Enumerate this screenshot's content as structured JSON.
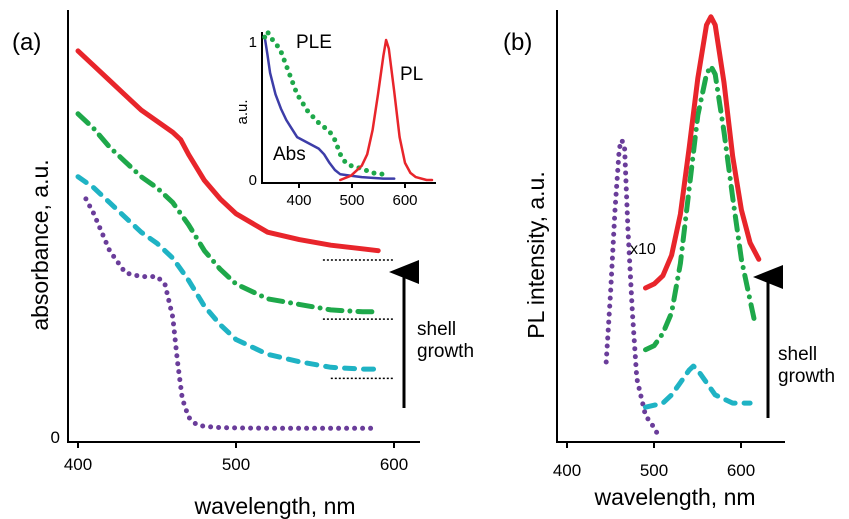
{
  "colors": {
    "red": "#e8252b",
    "green": "#1ea84a",
    "cyan": "#1fb3c4",
    "purple": "#6a3d9a",
    "blue": "#3d3da8",
    "axis": "#000000"
  },
  "chart_data": [
    {
      "type": "line",
      "panel": "(a)",
      "xlabel": "wavelength, nm",
      "ylabel": "absorbance, a.u.",
      "xlim": [
        400,
        600
      ],
      "x_ticks": [
        "400",
        "500",
        "600"
      ],
      "y_tick_label": "0",
      "ylim": [
        0,
        1
      ],
      "arrow_annotation": "shell growth",
      "series": [
        {
          "style": "dotted",
          "color": "purple",
          "x": [
            405,
            410,
            420,
            430,
            440,
            450,
            455,
            460,
            463,
            466,
            470,
            475,
            480,
            490,
            500,
            520,
            540,
            560,
            580,
            590
          ],
          "y": [
            0.63,
            0.59,
            0.49,
            0.43,
            0.42,
            0.42,
            0.4,
            0.31,
            0.19,
            0.09,
            0.04,
            0.02,
            0.015,
            0.012,
            0.011,
            0.01,
            0.01,
            0.01,
            0.01,
            0.01
          ]
        },
        {
          "style": "dashed",
          "color": "cyan",
          "x": [
            400,
            410,
            420,
            430,
            440,
            450,
            460,
            470,
            480,
            490,
            500,
            520,
            540,
            560,
            580,
            590
          ],
          "y": [
            0.69,
            0.66,
            0.62,
            0.58,
            0.54,
            0.51,
            0.47,
            0.41,
            0.34,
            0.29,
            0.25,
            0.21,
            0.19,
            0.175,
            0.17,
            0.17
          ]
        },
        {
          "style": "dashdot",
          "color": "green",
          "x": [
            400,
            410,
            420,
            430,
            440,
            450,
            460,
            470,
            480,
            490,
            500,
            520,
            540,
            560,
            580,
            590
          ],
          "y": [
            0.86,
            0.82,
            0.77,
            0.73,
            0.69,
            0.66,
            0.62,
            0.56,
            0.49,
            0.44,
            0.4,
            0.36,
            0.345,
            0.33,
            0.325,
            0.325
          ]
        },
        {
          "style": "solid",
          "color": "red",
          "x": [
            400,
            410,
            420,
            430,
            440,
            450,
            460,
            465,
            470,
            480,
            490,
            500,
            520,
            540,
            560,
            580,
            590
          ],
          "y": [
            1.03,
            0.99,
            0.95,
            0.91,
            0.87,
            0.84,
            0.81,
            0.79,
            0.75,
            0.68,
            0.63,
            0.59,
            0.54,
            0.52,
            0.505,
            0.495,
            0.49
          ]
        }
      ],
      "baselines": [
        {
          "x": [
            555,
            600
          ],
          "y": 0.465
        },
        {
          "x": [
            555,
            600
          ],
          "y": 0.305
        },
        {
          "x": [
            560,
            600
          ],
          "y": 0.145
        }
      ]
    },
    {
      "type": "line",
      "panel": "inset",
      "x_ticks": [
        "400",
        "500",
        "600"
      ],
      "y_ticks": [
        "0",
        "1"
      ],
      "xlim": [
        335,
        650
      ],
      "ylim": [
        0,
        1.05
      ],
      "ylabel": "a.u.",
      "series_labels": [
        "PLE",
        "Abs",
        "PL"
      ],
      "series": [
        {
          "name": "Abs",
          "style": "solid",
          "color": "blue",
          "x": [
            340,
            345,
            350,
            360,
            370,
            380,
            390,
            400,
            420,
            440,
            450,
            460,
            470,
            480,
            500,
            520,
            540,
            560,
            580
          ],
          "y": [
            1.0,
            0.88,
            0.75,
            0.6,
            0.5,
            0.42,
            0.36,
            0.3,
            0.26,
            0.22,
            0.18,
            0.12,
            0.07,
            0.04,
            0.03,
            0.02,
            0.015,
            0.01,
            0.01
          ]
        },
        {
          "name": "PLE",
          "style": "dotted",
          "color": "green",
          "x": [
            340,
            345,
            350,
            360,
            370,
            380,
            390,
            400,
            420,
            440,
            460,
            470,
            480,
            490,
            500,
            520,
            540,
            560
          ],
          "y": [
            1.0,
            1.04,
            1.0,
            0.96,
            0.9,
            0.8,
            0.7,
            0.6,
            0.48,
            0.4,
            0.34,
            0.28,
            0.18,
            0.12,
            0.1,
            0.08,
            0.05,
            0.04
          ]
        },
        {
          "name": "PL",
          "style": "solid",
          "color": "red",
          "x": [
            480,
            500,
            520,
            530,
            540,
            550,
            560,
            565,
            570,
            580,
            590,
            600,
            610,
            620,
            640,
            650
          ],
          "y": [
            0.0,
            0.03,
            0.1,
            0.18,
            0.35,
            0.6,
            0.87,
            0.98,
            0.92,
            0.62,
            0.3,
            0.12,
            0.05,
            0.02,
            0.0,
            0.0
          ]
        }
      ]
    },
    {
      "type": "line",
      "panel": "(b)",
      "xlabel": "wavelength, nm",
      "ylabel": "PL intensity, a.u.",
      "xlim": [
        400,
        650
      ],
      "x_ticks": [
        "400",
        "500",
        "600"
      ],
      "ylim": [
        0,
        1
      ],
      "arrow_annotation": "shell growth",
      "scale_label": "x10",
      "series": [
        {
          "style": "dotted",
          "color": "purple",
          "x": [
            445,
            450,
            455,
            460,
            463,
            466,
            470,
            475,
            480,
            490,
            500,
            505
          ],
          "y": [
            0.18,
            0.35,
            0.55,
            0.7,
            0.72,
            0.7,
            0.5,
            0.3,
            0.14,
            0.05,
            0.02,
            0.0
          ]
        },
        {
          "style": "dashed",
          "color": "cyan",
          "x": [
            490,
            500,
            510,
            520,
            530,
            540,
            545,
            550,
            560,
            570,
            580,
            590,
            600,
            610
          ],
          "y": [
            0.07,
            0.075,
            0.08,
            0.1,
            0.13,
            0.16,
            0.17,
            0.16,
            0.13,
            0.1,
            0.09,
            0.08,
            0.08,
            0.08
          ]
        },
        {
          "style": "dashdot",
          "color": "green",
          "x": [
            490,
            500,
            510,
            520,
            530,
            540,
            550,
            560,
            565,
            570,
            580,
            590,
            600,
            610,
            615
          ],
          "y": [
            0.21,
            0.22,
            0.25,
            0.3,
            0.42,
            0.6,
            0.78,
            0.88,
            0.9,
            0.88,
            0.74,
            0.58,
            0.43,
            0.33,
            0.28
          ]
        },
        {
          "style": "solid",
          "color": "red",
          "x": [
            490,
            500,
            510,
            520,
            530,
            540,
            550,
            560,
            565,
            570,
            580,
            590,
            600,
            610,
            620
          ],
          "y": [
            0.36,
            0.37,
            0.39,
            0.44,
            0.54,
            0.7,
            0.87,
            1.0,
            1.02,
            1.0,
            0.86,
            0.68,
            0.55,
            0.47,
            0.43
          ]
        }
      ]
    }
  ]
}
